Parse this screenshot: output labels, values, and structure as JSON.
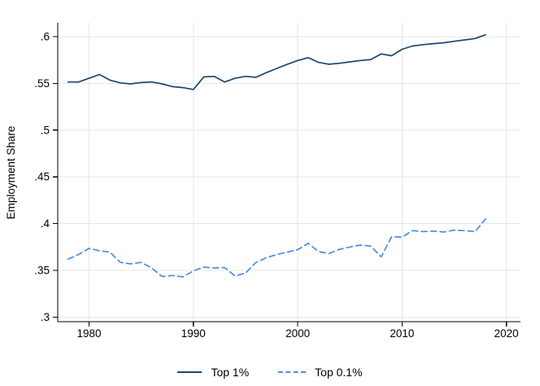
{
  "chart_data": {
    "type": "line",
    "title": "",
    "xlabel": "",
    "ylabel": "Employment Share",
    "grid": true,
    "legend_position": "bottom",
    "xlim": [
      1977,
      2021.3
    ],
    "ylim": [
      0.295,
      0.615
    ],
    "xticks": [
      1980,
      1990,
      2000,
      2010,
      2020
    ],
    "xtick_labels": [
      "1980",
      "1990",
      "2000",
      "2010",
      "2020"
    ],
    "yticks": [
      0.3,
      0.35,
      0.4,
      0.45,
      0.5,
      0.55,
      0.6
    ],
    "ytick_labels": [
      ".3",
      ".35",
      ".4",
      ".45",
      ".5",
      ".55",
      ".6"
    ],
    "x": [
      1978,
      1979,
      1980,
      1981,
      1982,
      1983,
      1984,
      1985,
      1986,
      1987,
      1988,
      1989,
      1990,
      1991,
      1992,
      1993,
      1994,
      1995,
      1996,
      1997,
      1998,
      1999,
      2000,
      2001,
      2002,
      2003,
      2004,
      2005,
      2006,
      2007,
      2008,
      2009,
      2010,
      2011,
      2012,
      2013,
      2014,
      2015,
      2016,
      2017,
      2018
    ],
    "series": [
      {
        "name": "Top 1%",
        "style": "solid",
        "color": "#1a476f",
        "values": [
          0.5515,
          0.5515,
          0.5555,
          0.5595,
          0.5535,
          0.5505,
          0.5495,
          0.551,
          0.5515,
          0.5495,
          0.5465,
          0.5455,
          0.5435,
          0.557,
          0.5575,
          0.5515,
          0.5555,
          0.5575,
          0.5565,
          0.5615,
          0.566,
          0.5705,
          0.5745,
          0.5775,
          0.5725,
          0.5705,
          0.5715,
          0.573,
          0.5745,
          0.5755,
          0.5815,
          0.5795,
          0.5865,
          0.59,
          0.5915,
          0.5925,
          0.5935,
          0.595,
          0.5965,
          0.598,
          0.602
        ]
      },
      {
        "name": "Top 0.1%",
        "style": "dashed",
        "color": "#4a8de2",
        "values": [
          0.362,
          0.367,
          0.3735,
          0.371,
          0.3695,
          0.3585,
          0.357,
          0.3585,
          0.3525,
          0.3435,
          0.3445,
          0.343,
          0.3495,
          0.3535,
          0.3525,
          0.353,
          0.344,
          0.347,
          0.3585,
          0.3635,
          0.367,
          0.3695,
          0.372,
          0.379,
          0.37,
          0.368,
          0.3725,
          0.375,
          0.377,
          0.376,
          0.3645,
          0.386,
          0.3855,
          0.3925,
          0.3915,
          0.392,
          0.391,
          0.393,
          0.3925,
          0.3915,
          0.405
        ]
      }
    ],
    "colors": {
      "grid": "#e8e6e6",
      "axis": "#000000"
    }
  },
  "legend": {
    "items": [
      {
        "label": "Top 1%"
      },
      {
        "label": "Top 0.1%"
      }
    ]
  }
}
